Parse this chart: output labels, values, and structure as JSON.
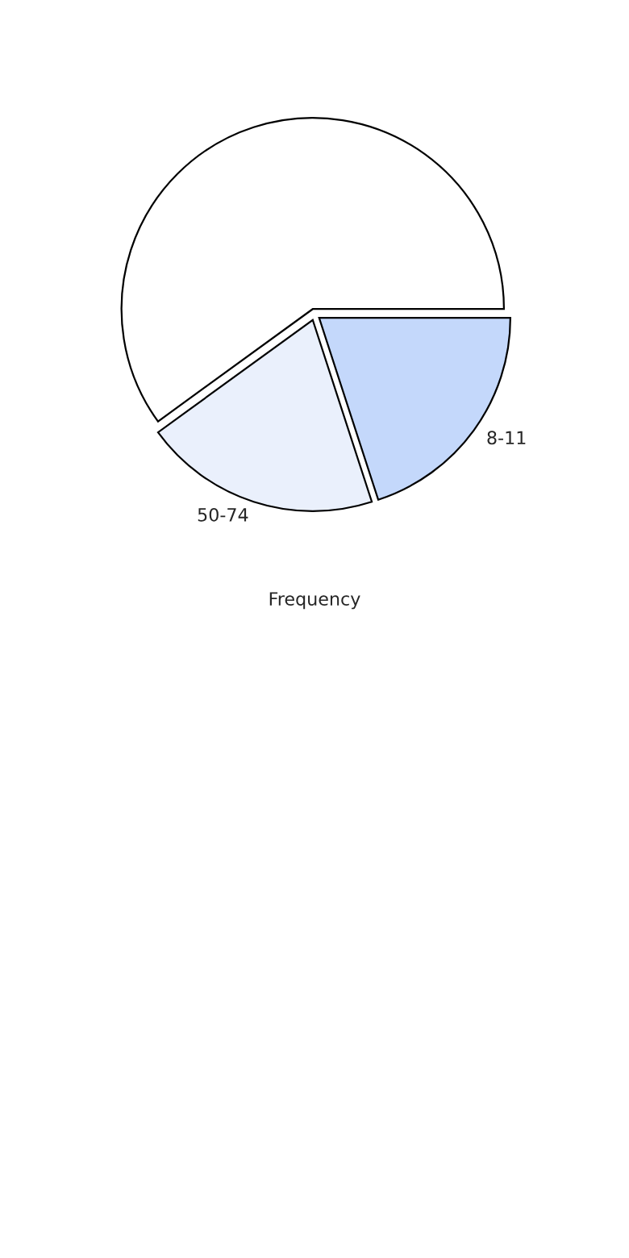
{
  "chart_data": {
    "type": "pie",
    "xlabel": "Frequency",
    "categories": [
      null,
      "50-74",
      "8-11"
    ],
    "values": [
      60,
      20,
      20
    ],
    "colors": [
      "#ffffff",
      "#eaf0fc",
      "#c4d8fb"
    ]
  }
}
